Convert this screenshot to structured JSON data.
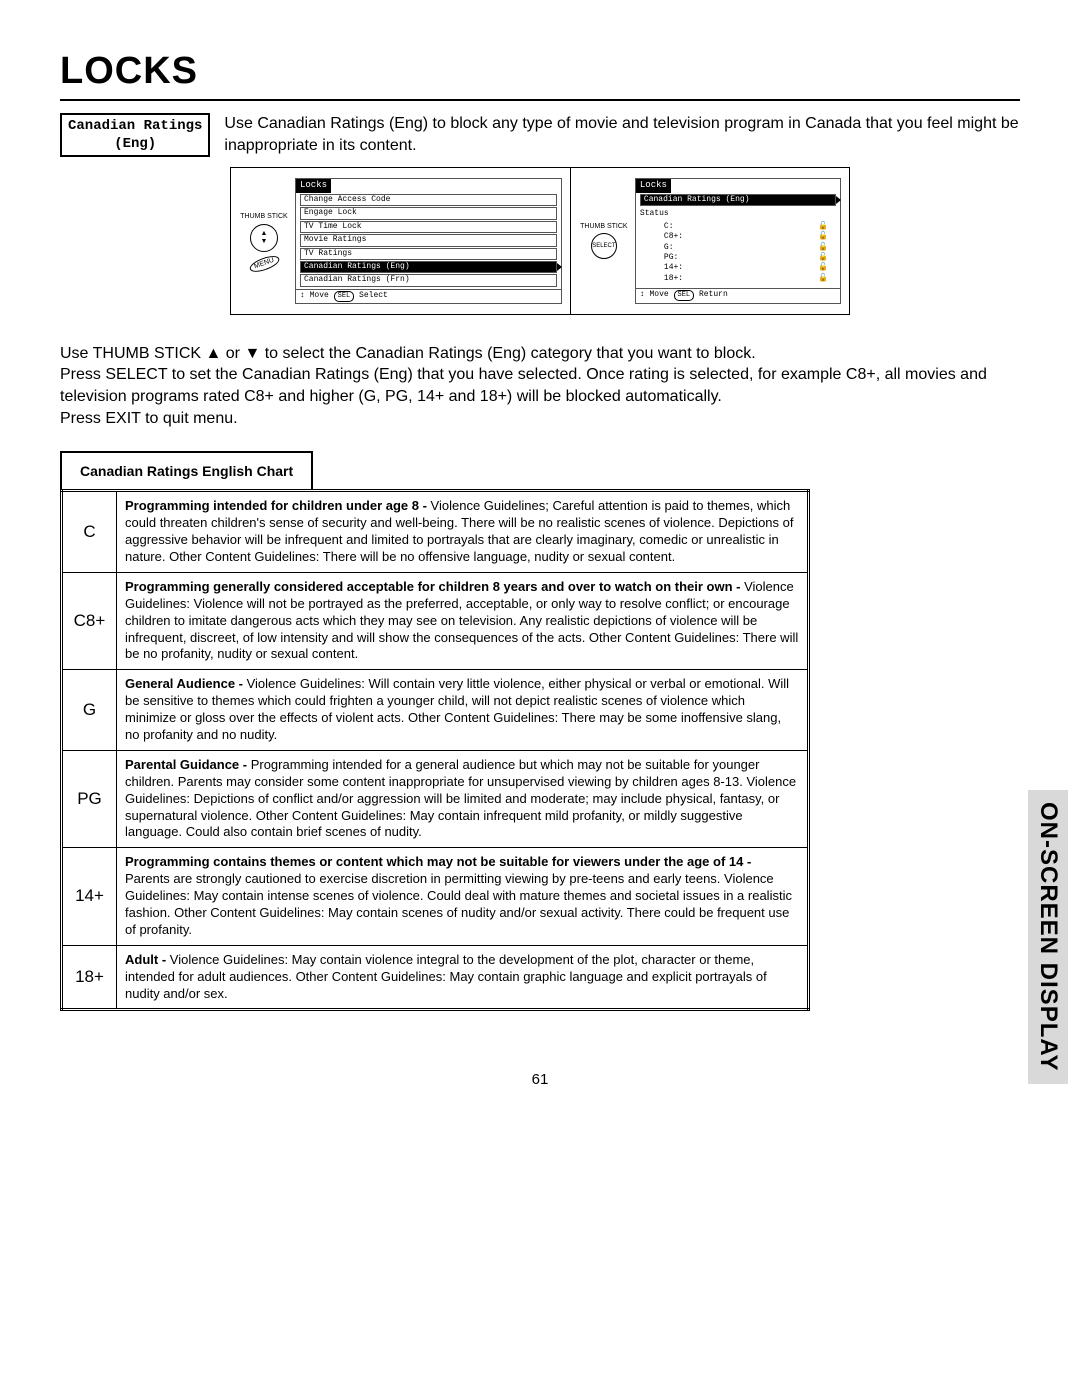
{
  "page_title": "LOCKS",
  "section_label_line1": "Canadian Ratings",
  "section_label_line2": "(Eng)",
  "intro_text": "Use Canadian Ratings (Eng) to block any type of movie and television program in Canada that you feel might be inappropriate in its content.",
  "remote": {
    "thumb_label": "THUMB STICK",
    "menu_label": "MENU",
    "select_label": "SELECT"
  },
  "osd_menu": {
    "title": "Locks",
    "items": [
      {
        "label": "Change Access Code",
        "hl": false
      },
      {
        "label": "Engage Lock",
        "hl": false
      },
      {
        "label": "TV Time Lock",
        "hl": false
      },
      {
        "label": "Movie Ratings",
        "hl": false
      },
      {
        "label": "TV Ratings",
        "hl": false
      },
      {
        "label": "Canadian Ratings (Eng)",
        "hl": true
      },
      {
        "label": "Canadian Ratings (Frn)",
        "hl": false
      }
    ],
    "footer_move": "Move",
    "footer_sel": "SEL",
    "footer_select": "Select"
  },
  "osd_status": {
    "title": "Locks",
    "subtitle": "Canadian Ratings (Eng)",
    "status_label": "Status",
    "rows": [
      {
        "k": "C:",
        "locked": false
      },
      {
        "k": "C8+:",
        "locked": false
      },
      {
        "k": "G:",
        "locked": false
      },
      {
        "k": "PG:",
        "locked": false
      },
      {
        "k": "14+:",
        "locked": false
      },
      {
        "k": "18+:",
        "locked": false
      }
    ],
    "footer_move": "Move",
    "footer_sel": "SEL",
    "footer_return": "Return"
  },
  "instructions_p1": "Use THUMB STICK ▲ or ▼ to select the Canadian Ratings (Eng) category that you want to block.",
  "instructions_p2": "Press SELECT to set the Canadian Ratings (Eng) that you have selected. Once rating is selected, for example C8+, all movies and television programs rated C8+ and higher (G, PG, 14+ and 18+) will be blocked automatically.",
  "instructions_p3": "Press EXIT to quit menu.",
  "chart_label": "Canadian Ratings English Chart",
  "ratings": [
    {
      "code": "C",
      "bold": "Programming intended for children under age 8 -",
      "text": " Violence Guidelines; Careful attention is paid to themes, which could threaten children's sense of security and well-being.  There will be no realistic scenes of violence.  Depictions of aggressive behavior will be infrequent and limited to portrayals that are clearly imaginary, comedic or unrealistic in nature.  Other Content Guidelines:  There will be no offensive language, nudity or sexual content."
    },
    {
      "code": "C8+",
      "bold": "Programming generally considered acceptable for children 8 years and over to watch on their own -",
      "text": " Violence Guidelines: Violence will not be portrayed as the preferred, acceptable, or only way to resolve conflict; or encourage children to imitate dangerous acts which they may see on television.  Any realistic depictions of violence will be infrequent, discreet, of low intensity and will show the consequences of the acts.  Other Content Guidelines: There will be no profanity, nudity or sexual content."
    },
    {
      "code": "G",
      "bold": "General Audience -",
      "text": " Violence Guidelines: Will contain very little violence, either physical or verbal or emotional.  Will be sensitive to themes which could frighten a younger child, will not depict realistic scenes of violence which minimize or gloss over the effects of violent acts.  Other Content Guidelines: There may be some inoffensive slang, no profanity and no nudity."
    },
    {
      "code": "PG",
      "bold": "Parental Guidance -",
      "text": "  Programming intended for a general audience but which may not be suitable for younger children.  Parents may consider some content inappropriate for unsupervised viewing by children ages 8-13.  Violence Guidelines: Depictions of conflict and/or aggression will be limited and moderate; may include physical, fantasy, or supernatural violence.  Other Content Guidelines:  May contain infrequent mild profanity, or mildly suggestive language.  Could also contain brief scenes of nudity."
    },
    {
      "code": "14+",
      "bold": "Programming contains themes or content which may not be suitable for viewers under the age of 14 -",
      "text": "  Parents are strongly cautioned to exercise discretion in permitting viewing by pre-teens and early teens.  Violence Guidelines: May contain intense scenes of violence.  Could deal with mature themes and societal issues in a realistic fashion. Other Content Guidelines: May contain scenes of nudity and/or sexual activity.  There could be frequent use of profanity."
    },
    {
      "code": "18+",
      "bold": "Adult -",
      "text": " Violence Guidelines: May contain violence integral to the development of the plot, character or theme, intended for adult audiences.  Other Content Guidelines: May contain graphic language and explicit portrayals of nudity and/or sex."
    }
  ],
  "page_number": "61",
  "side_label": "ON-SCREEN DISPLAY"
}
